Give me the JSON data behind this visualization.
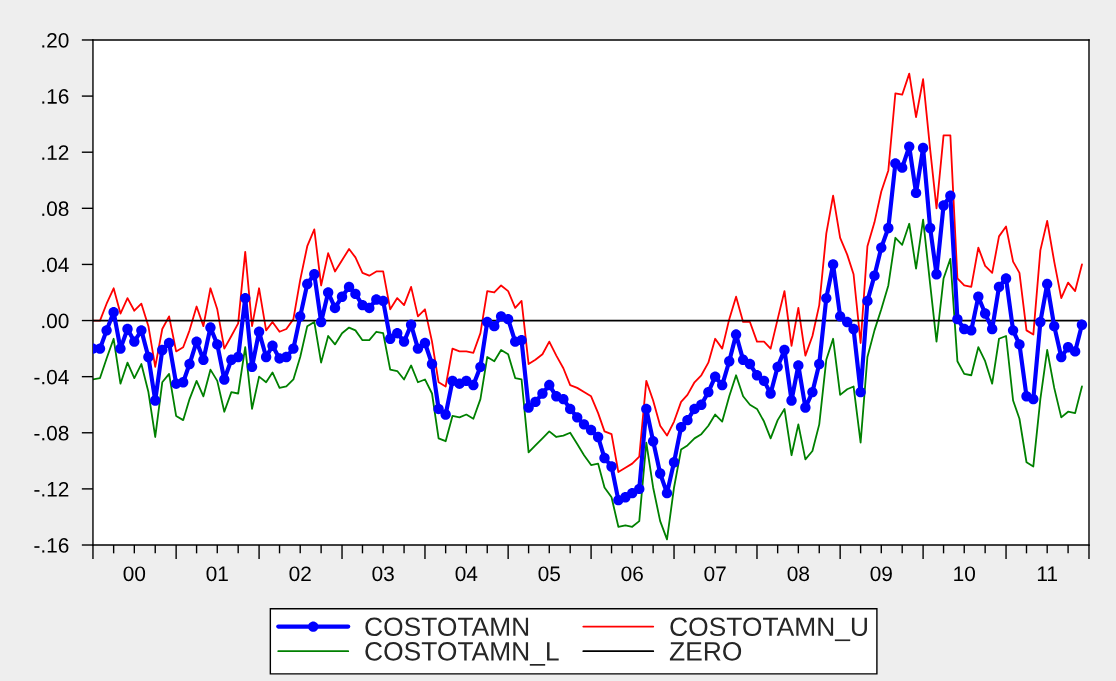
{
  "chart_data": {
    "type": "line",
    "x": [
      "2000-01",
      "2000-02",
      "2000-03",
      "2000-04",
      "2000-05",
      "2000-06",
      "2000-07",
      "2000-08",
      "2000-09",
      "2000-10",
      "2000-11",
      "2000-12",
      "2001-01",
      "2001-02",
      "2001-03",
      "2001-04",
      "2001-05",
      "2001-06",
      "2001-07",
      "2001-08",
      "2001-09",
      "2001-10",
      "2001-11",
      "2001-12",
      "2002-01",
      "2002-02",
      "2002-03",
      "2002-04",
      "2002-05",
      "2002-06",
      "2002-07",
      "2002-08",
      "2002-09",
      "2002-10",
      "2002-11",
      "2002-12",
      "2003-01",
      "2003-02",
      "2003-03",
      "2003-04",
      "2003-05",
      "2003-06",
      "2003-07",
      "2003-08",
      "2003-09",
      "2003-10",
      "2003-11",
      "2003-12",
      "2004-01",
      "2004-02",
      "2004-03",
      "2004-04",
      "2004-05",
      "2004-06",
      "2004-07",
      "2004-08",
      "2004-09",
      "2004-10",
      "2004-11",
      "2004-12",
      "2005-01",
      "2005-02",
      "2005-03",
      "2005-04",
      "2005-05",
      "2005-06",
      "2005-07",
      "2005-08",
      "2005-09",
      "2005-10",
      "2005-11",
      "2005-12",
      "2006-01",
      "2006-02",
      "2006-03",
      "2006-04",
      "2006-05",
      "2006-06",
      "2006-07",
      "2006-08",
      "2006-09",
      "2006-10",
      "2006-11",
      "2006-12",
      "2007-01",
      "2007-02",
      "2007-03",
      "2007-04",
      "2007-05",
      "2007-06",
      "2007-07",
      "2007-08",
      "2007-09",
      "2007-10",
      "2007-11",
      "2007-12",
      "2008-01",
      "2008-02",
      "2008-03",
      "2008-04",
      "2008-05",
      "2008-06",
      "2008-07",
      "2008-08",
      "2008-09",
      "2008-10",
      "2008-11",
      "2008-12",
      "2009-01",
      "2009-02",
      "2009-03",
      "2009-04",
      "2009-05",
      "2009-06",
      "2009-07",
      "2009-08",
      "2009-09",
      "2009-10",
      "2009-11",
      "2009-12",
      "2010-01",
      "2010-02",
      "2010-03",
      "2010-04",
      "2010-05",
      "2010-06",
      "2010-07",
      "2010-08",
      "2010-09",
      "2010-10",
      "2010-11",
      "2010-12",
      "2011-01",
      "2011-02",
      "2011-03",
      "2011-04",
      "2011-05",
      "2011-06",
      "2011-07",
      "2011-08",
      "2011-09",
      "2011-10",
      "2011-11",
      "2011-12"
    ],
    "series": [
      {
        "name": "COSTOTAMN",
        "color": "#0000ff",
        "marker": "circle",
        "values": [
          -0.02,
          -0.02,
          -0.007,
          0.006,
          -0.02,
          -0.006,
          -0.015,
          -0.007,
          -0.026,
          -0.057,
          -0.021,
          -0.016,
          -0.045,
          -0.044,
          -0.031,
          -0.015,
          -0.028,
          -0.005,
          -0.017,
          -0.042,
          -0.028,
          -0.026,
          0.016,
          -0.033,
          -0.008,
          -0.026,
          -0.018,
          -0.027,
          -0.026,
          -0.02,
          0.003,
          0.026,
          0.033,
          -0.001,
          0.02,
          0.009,
          0.017,
          0.024,
          0.019,
          0.011,
          0.009,
          0.015,
          0.014,
          -0.013,
          -0.009,
          -0.015,
          -0.003,
          -0.02,
          -0.016,
          -0.031,
          -0.063,
          -0.067,
          -0.043,
          -0.045,
          -0.043,
          -0.046,
          -0.033,
          -0.001,
          -0.004,
          0.003,
          0.001,
          -0.015,
          -0.014,
          -0.062,
          -0.058,
          -0.052,
          -0.046,
          -0.054,
          -0.056,
          -0.063,
          -0.069,
          -0.074,
          -0.078,
          -0.083,
          -0.098,
          -0.104,
          -0.128,
          -0.126,
          -0.123,
          -0.12,
          -0.063,
          -0.086,
          -0.109,
          -0.123,
          -0.101,
          -0.076,
          -0.071,
          -0.063,
          -0.06,
          -0.051,
          -0.04,
          -0.046,
          -0.029,
          -0.01,
          -0.028,
          -0.031,
          -0.039,
          -0.043,
          -0.052,
          -0.033,
          -0.021,
          -0.057,
          -0.032,
          -0.062,
          -0.051,
          -0.031,
          0.016,
          0.04,
          0.003,
          -0.001,
          -0.006,
          -0.051,
          0.014,
          0.032,
          0.052,
          0.066,
          0.112,
          0.109,
          0.124,
          0.091,
          0.123,
          0.066,
          0.033,
          0.082,
          0.089,
          0.001,
          -0.006,
          -0.007,
          0.017,
          0.005,
          -0.006,
          0.024,
          0.03,
          -0.007,
          -0.017,
          -0.054,
          -0.056,
          -0.001,
          0.026,
          -0.004,
          -0.026,
          -0.019,
          -0.022,
          -0.003
        ]
      },
      {
        "name": "COSTOTAMN_U",
        "color": "#ff0000",
        "values": [
          0.0,
          0.0,
          0.012,
          0.023,
          0.005,
          0.016,
          0.007,
          0.012,
          -0.004,
          -0.033,
          -0.006,
          0.003,
          -0.022,
          -0.019,
          -0.007,
          0.01,
          -0.004,
          0.023,
          0.008,
          -0.02,
          -0.011,
          -0.002,
          0.049,
          -0.004,
          0.023,
          -0.007,
          -0.001,
          -0.008,
          -0.006,
          0.001,
          0.029,
          0.053,
          0.065,
          0.025,
          0.048,
          0.035,
          0.043,
          0.051,
          0.045,
          0.034,
          0.032,
          0.035,
          0.035,
          0.008,
          0.016,
          0.011,
          0.024,
          0.003,
          0.008,
          -0.015,
          -0.044,
          -0.047,
          -0.02,
          -0.022,
          -0.022,
          -0.023,
          -0.009,
          0.021,
          0.02,
          0.025,
          0.021,
          0.009,
          0.014,
          -0.031,
          -0.028,
          -0.024,
          -0.015,
          -0.025,
          -0.034,
          -0.046,
          -0.048,
          -0.051,
          -0.054,
          -0.066,
          -0.079,
          -0.081,
          -0.108,
          -0.105,
          -0.102,
          -0.097,
          -0.043,
          -0.057,
          -0.075,
          -0.082,
          -0.072,
          -0.058,
          -0.053,
          -0.044,
          -0.039,
          -0.03,
          -0.013,
          -0.02,
          0.001,
          0.017,
          -0.001,
          -0.001,
          -0.015,
          -0.015,
          -0.02,
          0.001,
          0.021,
          -0.018,
          0.009,
          -0.025,
          -0.011,
          0.011,
          0.062,
          0.089,
          0.059,
          0.047,
          0.033,
          -0.016,
          0.053,
          0.07,
          0.092,
          0.107,
          0.162,
          0.161,
          0.176,
          0.145,
          0.172,
          0.122,
          0.08,
          0.132,
          0.132,
          0.03,
          0.025,
          0.024,
          0.052,
          0.039,
          0.034,
          0.06,
          0.067,
          0.042,
          0.034,
          -0.007,
          -0.01,
          0.05,
          0.071,
          0.042,
          0.016,
          0.027,
          0.021,
          0.04
        ]
      },
      {
        "name": "COSTOTAMN_L",
        "color": "#008000",
        "values": [
          -0.042,
          -0.041,
          -0.027,
          -0.013,
          -0.045,
          -0.03,
          -0.041,
          -0.031,
          -0.051,
          -0.083,
          -0.044,
          -0.038,
          -0.068,
          -0.071,
          -0.056,
          -0.043,
          -0.054,
          -0.035,
          -0.043,
          -0.065,
          -0.051,
          -0.052,
          -0.019,
          -0.063,
          -0.04,
          -0.044,
          -0.037,
          -0.048,
          -0.047,
          -0.042,
          -0.026,
          -0.004,
          -0.001,
          -0.03,
          -0.011,
          -0.017,
          -0.009,
          -0.005,
          -0.007,
          -0.014,
          -0.014,
          -0.008,
          -0.009,
          -0.035,
          -0.036,
          -0.042,
          -0.032,
          -0.044,
          -0.042,
          -0.052,
          -0.084,
          -0.086,
          -0.068,
          -0.069,
          -0.067,
          -0.07,
          -0.056,
          -0.026,
          -0.029,
          -0.021,
          -0.024,
          -0.041,
          -0.042,
          -0.094,
          -0.089,
          -0.084,
          -0.079,
          -0.083,
          -0.082,
          -0.08,
          -0.088,
          -0.096,
          -0.103,
          -0.102,
          -0.119,
          -0.126,
          -0.147,
          -0.146,
          -0.147,
          -0.143,
          -0.087,
          -0.119,
          -0.143,
          -0.156,
          -0.119,
          -0.092,
          -0.089,
          -0.084,
          -0.081,
          -0.075,
          -0.067,
          -0.072,
          -0.054,
          -0.039,
          -0.054,
          -0.06,
          -0.063,
          -0.072,
          -0.084,
          -0.071,
          -0.063,
          -0.096,
          -0.074,
          -0.099,
          -0.093,
          -0.074,
          -0.028,
          -0.013,
          -0.053,
          -0.049,
          -0.047,
          -0.087,
          -0.026,
          -0.007,
          0.008,
          0.025,
          0.059,
          0.054,
          0.069,
          0.037,
          0.072,
          0.026,
          -0.015,
          0.03,
          0.044,
          -0.029,
          -0.038,
          -0.039,
          -0.019,
          -0.029,
          -0.045,
          -0.013,
          -0.011,
          -0.057,
          -0.07,
          -0.101,
          -0.104,
          -0.056,
          -0.021,
          -0.048,
          -0.069,
          -0.065,
          -0.066,
          -0.047
        ]
      },
      {
        "name": "ZERO",
        "color": "#000000",
        "x": [
          "2000-01",
          "2011-12"
        ],
        "values": [
          0,
          0
        ]
      }
    ],
    "xlim": [
      "2000-01",
      "2012-01"
    ],
    "xticks": [
      {
        "value": "2000-01",
        "label": null
      },
      {
        "value": "2000-04",
        "label": null
      },
      {
        "value": "2000-07",
        "label": "00"
      },
      {
        "value": "2000-10",
        "label": null
      },
      {
        "value": "2001-01",
        "label": null
      },
      {
        "value": "2001-04",
        "label": null
      },
      {
        "value": "2001-07",
        "label": "01"
      },
      {
        "value": "2001-10",
        "label": null
      },
      {
        "value": "2002-01",
        "label": null
      },
      {
        "value": "2002-04",
        "label": null
      },
      {
        "value": "2002-07",
        "label": "02"
      },
      {
        "value": "2002-10",
        "label": null
      },
      {
        "value": "2003-01",
        "label": null
      },
      {
        "value": "2003-04",
        "label": null
      },
      {
        "value": "2003-07",
        "label": "03"
      },
      {
        "value": "2003-10",
        "label": null
      },
      {
        "value": "2004-01",
        "label": null
      },
      {
        "value": "2004-04",
        "label": null
      },
      {
        "value": "2004-07",
        "label": "04"
      },
      {
        "value": "2004-10",
        "label": null
      },
      {
        "value": "2005-01",
        "label": null
      },
      {
        "value": "2005-04",
        "label": null
      },
      {
        "value": "2005-07",
        "label": "05"
      },
      {
        "value": "2005-10",
        "label": null
      },
      {
        "value": "2006-01",
        "label": null
      },
      {
        "value": "2006-04",
        "label": null
      },
      {
        "value": "2006-07",
        "label": "06"
      },
      {
        "value": "2006-10",
        "label": null
      },
      {
        "value": "2007-01",
        "label": null
      },
      {
        "value": "2007-04",
        "label": null
      },
      {
        "value": "2007-07",
        "label": "07"
      },
      {
        "value": "2007-10",
        "label": null
      },
      {
        "value": "2008-01",
        "label": null
      },
      {
        "value": "2008-04",
        "label": null
      },
      {
        "value": "2008-07",
        "label": "08"
      },
      {
        "value": "2008-10",
        "label": null
      },
      {
        "value": "2009-01",
        "label": null
      },
      {
        "value": "2009-04",
        "label": null
      },
      {
        "value": "2009-07",
        "label": "09"
      },
      {
        "value": "2009-10",
        "label": null
      },
      {
        "value": "2010-01",
        "label": null
      },
      {
        "value": "2010-04",
        "label": null
      },
      {
        "value": "2010-07",
        "label": "10"
      },
      {
        "value": "2010-10",
        "label": null
      },
      {
        "value": "2011-01",
        "label": null
      },
      {
        "value": "2011-04",
        "label": null
      },
      {
        "value": "2011-07",
        "label": "11"
      },
      {
        "value": "2011-10",
        "label": null
      },
      {
        "value": "2012-01",
        "label": null
      }
    ],
    "ylim": [
      -0.16,
      0.2
    ],
    "yticks": [
      {
        "value": -0.16,
        "label": "-.16"
      },
      {
        "value": -0.12,
        "label": "-.12"
      },
      {
        "value": -0.08,
        "label": "-.08"
      },
      {
        "value": -0.04,
        "label": "-.04"
      },
      {
        "value": 0,
        "label": ".00"
      },
      {
        "value": 0.04,
        "label": ".04"
      },
      {
        "value": 0.08,
        "label": ".08"
      },
      {
        "value": 0.12,
        "label": ".12"
      },
      {
        "value": 0.16,
        "label": ".16"
      },
      {
        "value": 0.2,
        "label": ".20"
      }
    ],
    "grid": false,
    "legend": "bottom",
    "marker": "none",
    "line_style": "solid"
  }
}
